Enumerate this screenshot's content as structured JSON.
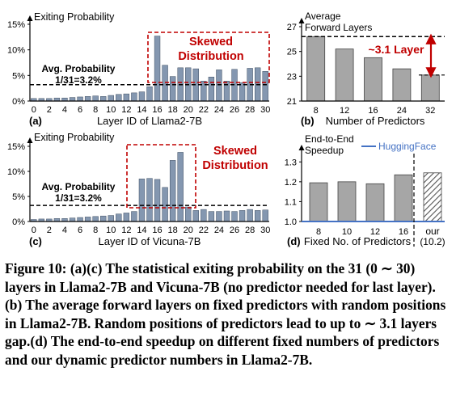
{
  "caption": "Figure 10: (a)(c) The statistical exiting probability on the 31 (0 ∼ 30) layers in Llama2-7B and Vicuna-7B (no predictor needed for last layer). (b) The average forward layers on fixed predictors with random positions in Llama2-7B. Random positions of predictors lead to up to ∼ 3.1 layers gap.(d) The end-to-end speedup on different fixed numbers of predictors and our dynamic predictor numbers in Llama2-7B.",
  "colors": {
    "bar": "#8497b0",
    "gray_bar": "#a6a6a6",
    "accent": "#c00000",
    "line": "#4472c4"
  },
  "chart_data": [
    {
      "id": "a",
      "type": "bar",
      "panel_label": "(a)",
      "title": "Exiting Probability",
      "xlabel": "Layer ID of Llama2-7B",
      "ylabel": "",
      "y_ticks": [
        "0%",
        "5%",
        "10%",
        "15%"
      ],
      "x_ticks": [
        "0",
        "2",
        "4",
        "6",
        "8",
        "10",
        "12",
        "14",
        "16",
        "18",
        "20",
        "22",
        "24",
        "26",
        "28",
        "30"
      ],
      "ylim": [
        0,
        15
      ],
      "categories": [
        "0",
        "1",
        "2",
        "3",
        "4",
        "5",
        "6",
        "7",
        "8",
        "9",
        "10",
        "11",
        "12",
        "13",
        "14",
        "15",
        "16",
        "17",
        "18",
        "19",
        "20",
        "21",
        "22",
        "23",
        "24",
        "25",
        "26",
        "27",
        "28",
        "29",
        "30"
      ],
      "values": [
        0.5,
        0.5,
        0.5,
        0.6,
        0.6,
        0.7,
        0.8,
        0.9,
        1.0,
        0.9,
        1.1,
        1.3,
        1.4,
        1.6,
        1.8,
        2.8,
        12.7,
        7.0,
        4.8,
        6.5,
        6.5,
        6.3,
        3.9,
        4.7,
        6.1,
        3.9,
        6.2,
        3.6,
        6.4,
        6.5,
        5.8
      ],
      "reference_line": {
        "value": 3.2,
        "label_line1": "Avg. Probability",
        "label_line2": "1/31=3.2%"
      },
      "annotation": {
        "line1": "Skewed",
        "line2": "Distribution"
      },
      "grid": false
    },
    {
      "id": "b",
      "type": "bar",
      "panel_label": "(b)",
      "title_line1": "Average",
      "title_line2": "Forward Layers",
      "xlabel": "Number of Predictors",
      "ylabel": "",
      "y_ticks": [
        "21",
        "23",
        "25",
        "27"
      ],
      "categories": [
        "8",
        "12",
        "16",
        "24",
        "32"
      ],
      "values": [
        26.2,
        25.2,
        24.5,
        23.6,
        23.1
      ],
      "ylim": [
        21,
        27
      ],
      "annotation": "~3.1 Layer",
      "grid": false
    },
    {
      "id": "c",
      "type": "bar",
      "panel_label": "(c)",
      "title": "Exiting Probability",
      "xlabel": "Layer ID of Vicuna-7B",
      "ylabel": "",
      "y_ticks": [
        "0%",
        "5%",
        "10%",
        "15%"
      ],
      "x_ticks": [
        "0",
        "2",
        "4",
        "6",
        "8",
        "10",
        "12",
        "14",
        "16",
        "18",
        "20",
        "22",
        "24",
        "26",
        "28",
        "30"
      ],
      "ylim": [
        0,
        15
      ],
      "categories": [
        "0",
        "1",
        "2",
        "3",
        "4",
        "5",
        "6",
        "7",
        "8",
        "9",
        "10",
        "11",
        "12",
        "13",
        "14",
        "15",
        "16",
        "17",
        "18",
        "19",
        "20",
        "21",
        "22",
        "23",
        "24",
        "25",
        "26",
        "27",
        "28",
        "29",
        "30"
      ],
      "values": [
        0.4,
        0.5,
        0.5,
        0.6,
        0.6,
        0.7,
        0.8,
        0.9,
        1.0,
        1.1,
        1.2,
        1.5,
        1.7,
        2.0,
        8.5,
        8.6,
        8.4,
        6.8,
        12.2,
        13.8,
        2.9,
        2.2,
        2.4,
        2.0,
        2.0,
        2.1,
        2.0,
        2.2,
        2.4,
        2.2,
        2.3
      ],
      "reference_line": {
        "value": 3.2,
        "label_line1": "Avg. Probability",
        "label_line2": "1/31=3.2%"
      },
      "annotation": {
        "line1": "Skewed",
        "line2": "Distribution"
      },
      "grid": false
    },
    {
      "id": "d",
      "type": "bar",
      "panel_label": "(d)",
      "title_line1": "End-to-End",
      "title_line2": "Speedup",
      "legend": "HuggingFace",
      "xlabel": "Fixed No. of Predictors",
      "ylabel": "",
      "y_ticks": [
        "1.0",
        "1.1",
        "1.2",
        "1.3"
      ],
      "categories": [
        "8",
        "10",
        "12",
        "16"
      ],
      "values": [
        1.195,
        1.2,
        1.19,
        1.235
      ],
      "ours": {
        "label_line1": "our",
        "label_line2": "(10.2)",
        "value": 1.245
      },
      "ylim": [
        1.0,
        1.35
      ],
      "baseline": 1.0,
      "grid": false
    }
  ]
}
